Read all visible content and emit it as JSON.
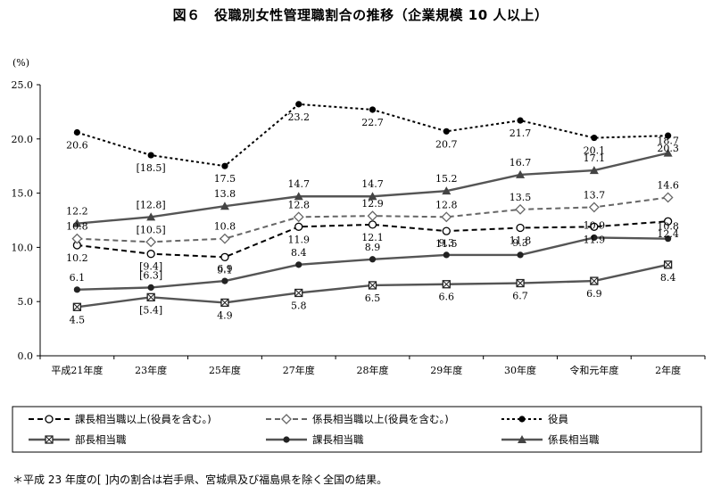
{
  "title": "図６　役職別女性管理職割合の推移（企業規模 10 人以上）",
  "note": "＊平成 23 年度の[ ]内の割合は岩手県、宮城県及び福島県を除く全国の結果。",
  "chart_data": {
    "type": "line",
    "unit_label": "(%)",
    "categories": [
      "平成21年度",
      "23年度",
      "25年度",
      "27年度",
      "28年度",
      "29年度",
      "30年度",
      "令和元年度",
      "2年度"
    ],
    "ylim": [
      0,
      25
    ],
    "yticks": [
      "0.0",
      "5.0",
      "10.0",
      "15.0",
      "20.0",
      "25.0"
    ],
    "grid": false,
    "legend_position": "bottom",
    "series": [
      {
        "name": "課長相当職以上(役員を含む。)",
        "values": [
          10.2,
          9.4,
          9.1,
          11.9,
          12.1,
          11.5,
          11.8,
          11.9,
          12.4
        ],
        "labels": [
          "10.2",
          "[9.4]",
          "9.1",
          "11.9",
          "12.1",
          "11.5",
          "11.8",
          "11.9",
          "12.4"
        ],
        "style": "dash",
        "marker": "circle-open",
        "color": "#000000"
      },
      {
        "name": "係長相当職以上(役員を含む。)",
        "values": [
          10.8,
          10.5,
          10.8,
          12.8,
          12.9,
          12.8,
          13.5,
          13.7,
          14.6
        ],
        "labels": [
          "10.8",
          "[10.5]",
          "10.8",
          "12.8",
          "12.9",
          "12.8",
          "13.5",
          "13.7",
          "14.6"
        ],
        "style": "dash",
        "marker": "diamond-open",
        "color": "#666666"
      },
      {
        "name": "役員",
        "values": [
          20.6,
          18.5,
          17.5,
          23.2,
          22.7,
          20.7,
          21.7,
          20.1,
          20.3
        ],
        "labels": [
          "20.6",
          "[18.5]",
          "17.5",
          "23.2",
          "22.7",
          "20.7",
          "21.7",
          "20.1",
          "20.3"
        ],
        "style": "dot",
        "marker": "circle",
        "color": "#000000"
      },
      {
        "name": "部長相当職",
        "values": [
          4.5,
          5.4,
          4.9,
          5.8,
          6.5,
          6.6,
          6.7,
          6.9,
          8.4
        ],
        "labels": [
          "4.5",
          "[5.4]",
          "4.9",
          "5.8",
          "6.5",
          "6.6",
          "6.7",
          "6.9",
          "8.4"
        ],
        "style": "solid",
        "marker": "square-x",
        "color": "#555555"
      },
      {
        "name": "課長相当職",
        "values": [
          6.1,
          6.3,
          6.9,
          8.4,
          8.9,
          9.3,
          9.3,
          10.9,
          10.8
        ],
        "labels": [
          "6.1",
          "[6.3]",
          "6.9",
          "8.4",
          "8.9",
          "9.3",
          "9.3",
          "10.9",
          "10.8"
        ],
        "style": "solid",
        "marker": "circle",
        "color": "#555555"
      },
      {
        "name": "係長相当職",
        "values": [
          12.2,
          12.8,
          13.8,
          14.7,
          14.7,
          15.2,
          16.7,
          17.1,
          18.7
        ],
        "labels": [
          "12.2",
          "[12.8]",
          "13.8",
          "14.7",
          "14.7",
          "15.2",
          "16.7",
          "17.1",
          "18.7"
        ],
        "style": "solid",
        "marker": "triangle",
        "color": "#555555"
      }
    ]
  }
}
